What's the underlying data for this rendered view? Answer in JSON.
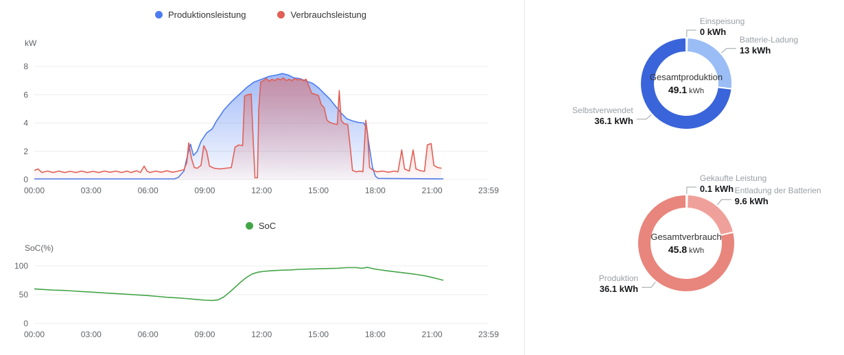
{
  "chart_data": [
    {
      "id": "power",
      "type": "area",
      "title": "",
      "ylabel": "kW",
      "ylim": [
        0,
        8
      ],
      "yticks": [
        0,
        2,
        4,
        6,
        8
      ],
      "xlim": [
        0,
        23.983
      ],
      "xtick_hours": [
        0,
        3,
        6,
        9,
        12,
        15,
        18,
        21,
        23.983
      ],
      "xtick_labels": [
        "00:00",
        "03:00",
        "06:00",
        "09:00",
        "12:00",
        "15:00",
        "18:00",
        "21:00",
        "23:59"
      ],
      "grid": true,
      "legend_position": "top",
      "series": [
        {
          "name": "Produktionsleistung",
          "color": "#4c7cf0",
          "area": true,
          "points": [
            [
              0,
              0.05
            ],
            [
              7.4,
              0.05
            ],
            [
              7.6,
              0.15
            ],
            [
              7.9,
              0.6
            ],
            [
              8.1,
              1.8
            ],
            [
              8.25,
              2.5
            ],
            [
              8.4,
              1.7
            ],
            [
              8.6,
              2.0
            ],
            [
              8.8,
              2.7
            ],
            [
              9.1,
              3.3
            ],
            [
              9.4,
              3.6
            ],
            [
              9.6,
              4.1
            ],
            [
              10,
              4.9
            ],
            [
              10.4,
              5.5
            ],
            [
              10.8,
              6.0
            ],
            [
              11.2,
              6.5
            ],
            [
              11.6,
              6.9
            ],
            [
              12,
              7.1
            ],
            [
              12.4,
              7.3
            ],
            [
              12.8,
              7.4
            ],
            [
              13.1,
              7.5
            ],
            [
              13.4,
              7.4
            ],
            [
              13.7,
              7.2
            ],
            [
              14,
              7.15
            ],
            [
              14.3,
              7.0
            ],
            [
              14.7,
              6.8
            ],
            [
              15,
              6.5
            ],
            [
              15.3,
              6.1
            ],
            [
              15.6,
              5.7
            ],
            [
              15.9,
              5.2
            ],
            [
              16.2,
              4.7
            ],
            [
              16.5,
              4.3
            ],
            [
              16.8,
              4.15
            ],
            [
              17.1,
              4.05
            ],
            [
              17.4,
              4.0
            ],
            [
              17.55,
              3.6
            ],
            [
              17.7,
              2.2
            ],
            [
              17.85,
              0.9
            ],
            [
              18,
              0.25
            ],
            [
              18.15,
              0.08
            ],
            [
              21.6,
              0.05
            ]
          ]
        },
        {
          "name": "Verbrauchsleistung",
          "color": "#e15f55",
          "area": true,
          "points": [
            [
              0,
              0.65
            ],
            [
              0.2,
              0.75
            ],
            [
              0.4,
              0.5
            ],
            [
              0.7,
              0.6
            ],
            [
              1,
              0.5
            ],
            [
              1.3,
              0.6
            ],
            [
              1.6,
              0.5
            ],
            [
              1.9,
              0.58
            ],
            [
              2.2,
              0.5
            ],
            [
              2.5,
              0.6
            ],
            [
              2.8,
              0.5
            ],
            [
              3.1,
              0.58
            ],
            [
              3.4,
              0.5
            ],
            [
              3.7,
              0.6
            ],
            [
              4,
              0.52
            ],
            [
              4.3,
              0.6
            ],
            [
              4.6,
              0.5
            ],
            [
              4.9,
              0.6
            ],
            [
              5.1,
              0.5
            ],
            [
              5.4,
              0.62
            ],
            [
              5.6,
              0.5
            ],
            [
              5.8,
              0.95
            ],
            [
              5.95,
              0.6
            ],
            [
              6.1,
              0.5
            ],
            [
              6.4,
              0.6
            ],
            [
              6.7,
              0.52
            ],
            [
              7,
              0.62
            ],
            [
              7.3,
              0.52
            ],
            [
              7.6,
              0.6
            ],
            [
              7.9,
              0.7
            ],
            [
              8.05,
              1.2
            ],
            [
              8.15,
              2.6
            ],
            [
              8.3,
              1.5
            ],
            [
              8.45,
              0.85
            ],
            [
              8.6,
              0.8
            ],
            [
              8.8,
              1.0
            ],
            [
              8.95,
              2.4
            ],
            [
              9.1,
              2.0
            ],
            [
              9.25,
              0.95
            ],
            [
              9.5,
              0.8
            ],
            [
              9.8,
              0.75
            ],
            [
              10.1,
              0.8
            ],
            [
              10.4,
              0.85
            ],
            [
              10.6,
              2.3
            ],
            [
              10.8,
              2.45
            ],
            [
              11,
              2.4
            ],
            [
              11.1,
              5.9
            ],
            [
              11.25,
              6.0
            ],
            [
              11.45,
              6.05
            ],
            [
              11.55,
              3.0
            ],
            [
              11.65,
              0.12
            ],
            [
              11.78,
              0.12
            ],
            [
              11.85,
              5.0
            ],
            [
              11.95,
              6.9
            ],
            [
              12.1,
              7.0
            ],
            [
              12.25,
              7.15
            ],
            [
              12.4,
              6.95
            ],
            [
              12.55,
              7.1
            ],
            [
              12.7,
              7.0
            ],
            [
              12.85,
              7.15
            ],
            [
              13,
              7.05
            ],
            [
              13.15,
              7.2
            ],
            [
              13.3,
              7.0
            ],
            [
              13.45,
              7.1
            ],
            [
              13.6,
              7.0
            ],
            [
              13.75,
              7.15
            ],
            [
              13.9,
              7.05
            ],
            [
              14.05,
              7.1
            ],
            [
              14.2,
              7.0
            ],
            [
              14.35,
              7.1
            ],
            [
              14.5,
              6.6
            ],
            [
              14.65,
              6.1
            ],
            [
              14.8,
              6.05
            ],
            [
              15,
              5.95
            ],
            [
              15.15,
              5.3
            ],
            [
              15.3,
              5.1
            ],
            [
              15.45,
              4.2
            ],
            [
              15.6,
              4.05
            ],
            [
              15.8,
              3.95
            ],
            [
              16,
              3.9
            ],
            [
              16.1,
              6.3
            ],
            [
              16.2,
              4.2
            ],
            [
              16.35,
              3.95
            ],
            [
              16.55,
              3.9
            ],
            [
              16.7,
              2.0
            ],
            [
              16.8,
              0.65
            ],
            [
              17,
              0.55
            ],
            [
              17.2,
              0.6
            ],
            [
              17.35,
              0.55
            ],
            [
              17.5,
              4.2
            ],
            [
              17.6,
              3.2
            ],
            [
              17.7,
              0.85
            ],
            [
              17.9,
              0.65
            ],
            [
              18.1,
              0.55
            ],
            [
              18.4,
              0.6
            ],
            [
              18.7,
              0.52
            ],
            [
              19,
              0.6
            ],
            [
              19.2,
              0.55
            ],
            [
              19.4,
              2.1
            ],
            [
              19.55,
              0.75
            ],
            [
              19.8,
              0.6
            ],
            [
              20,
              2.1
            ],
            [
              20.15,
              0.75
            ],
            [
              20.4,
              0.62
            ],
            [
              20.6,
              0.58
            ],
            [
              20.75,
              2.45
            ],
            [
              20.95,
              2.55
            ],
            [
              21.1,
              1.0
            ],
            [
              21.3,
              0.85
            ],
            [
              21.5,
              0.8
            ]
          ]
        }
      ]
    },
    {
      "id": "soc",
      "type": "line",
      "title": "",
      "ylabel": "SoC(%)",
      "ylim": [
        0,
        100
      ],
      "yticks": [
        0,
        50,
        100
      ],
      "xlim": [
        0,
        23.983
      ],
      "xtick_hours": [
        0,
        3,
        6,
        9,
        12,
        15,
        18,
        21,
        23.983
      ],
      "xtick_labels": [
        "00:00",
        "03:00",
        "06:00",
        "09:00",
        "12:00",
        "15:00",
        "18:00",
        "21:00",
        "23:59"
      ],
      "grid": true,
      "legend_position": "top",
      "series": [
        {
          "name": "SoC",
          "color": "#43a547",
          "area": false,
          "points": [
            [
              0,
              60
            ],
            [
              0.5,
              59
            ],
            [
              1,
              58
            ],
            [
              1.5,
              57.5
            ],
            [
              2,
              56.5
            ],
            [
              2.5,
              55.5
            ],
            [
              3,
              54.5
            ],
            [
              3.5,
              53.5
            ],
            [
              4,
              52.5
            ],
            [
              4.5,
              51.5
            ],
            [
              5,
              50.5
            ],
            [
              5.5,
              49.5
            ],
            [
              6,
              48.5
            ],
            [
              6.5,
              47
            ],
            [
              7,
              45.5
            ],
            [
              7.5,
              44.5
            ],
            [
              8,
              43.5
            ],
            [
              8.3,
              42.5
            ],
            [
              8.6,
              41.5
            ],
            [
              9,
              40.5
            ],
            [
              9.4,
              40
            ],
            [
              9.7,
              41
            ],
            [
              10,
              46
            ],
            [
              10.3,
              54
            ],
            [
              10.6,
              63
            ],
            [
              10.9,
              72
            ],
            [
              11.2,
              80
            ],
            [
              11.5,
              86
            ],
            [
              11.8,
              89
            ],
            [
              12.1,
              90.5
            ],
            [
              12.5,
              91.5
            ],
            [
              13,
              92.5
            ],
            [
              13.5,
              93
            ],
            [
              14,
              94
            ],
            [
              14.5,
              94.5
            ],
            [
              15,
              95
            ],
            [
              15.5,
              95.5
            ],
            [
              16,
              96
            ],
            [
              16.5,
              97
            ],
            [
              17,
              97
            ],
            [
              17.3,
              96
            ],
            [
              17.6,
              97.5
            ],
            [
              17.9,
              95
            ],
            [
              18.2,
              93.5
            ],
            [
              18.5,
              92
            ],
            [
              19,
              90
            ],
            [
              19.5,
              88
            ],
            [
              20,
              86
            ],
            [
              20.3,
              84.5
            ],
            [
              20.6,
              83
            ],
            [
              21,
              80
            ],
            [
              21.3,
              77.5
            ],
            [
              21.6,
              75
            ]
          ]
        }
      ]
    },
    {
      "id": "production-breakdown",
      "type": "pie",
      "center_label": "Gesamtproduktion",
      "center_value": "49.1",
      "center_unit": "kWh",
      "slices": [
        {
          "name": "Einspeisung",
          "value": 0,
          "display": "0 kWh",
          "color": "#1f3f9b"
        },
        {
          "name": "Batterie-Ladung",
          "value": 13,
          "display": "13 kWh",
          "color": "#9abdf5"
        },
        {
          "name": "Selbstverwendet",
          "value": 36.1,
          "display": "36.1 kWh",
          "color": "#3a64d9"
        }
      ]
    },
    {
      "id": "consumption-breakdown",
      "type": "pie",
      "center_label": "Gesamtverbrauch",
      "center_value": "45.8",
      "center_unit": "kWh",
      "slices": [
        {
          "name": "Gekaufte Leistung",
          "value": 0.1,
          "display": "0.1 kWh",
          "color": "#b2473c"
        },
        {
          "name": "Entladung der Batterien",
          "value": 9.6,
          "display": "9.6 kWh",
          "color": "#f0a09a"
        },
        {
          "name": "Produktion",
          "value": 36.1,
          "display": "36.1 kWh",
          "color": "#e8857c"
        }
      ]
    }
  ]
}
